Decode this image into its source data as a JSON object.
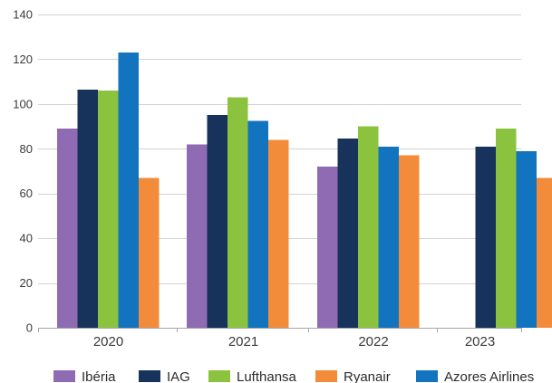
{
  "chart_data": {
    "type": "bar",
    "title": "",
    "xlabel": "",
    "ylabel": "",
    "ylim": [
      0,
      140
    ],
    "yticks": [
      0,
      20,
      40,
      60,
      80,
      100,
      120,
      140
    ],
    "grid": true,
    "legend": "bottom",
    "categories": [
      "2020",
      "2021",
      "2022",
      "2023"
    ],
    "series": [
      {
        "name": "Ibéria",
        "color": "#8e6bb2",
        "values": [
          89,
          82,
          72,
          null
        ]
      },
      {
        "name": "IAG",
        "color": "#17325b",
        "values": [
          106.5,
          95,
          84.5,
          81
        ]
      },
      {
        "name": "Lufthansa",
        "color": "#8cc33e",
        "values": [
          106,
          103,
          90,
          89
        ]
      },
      {
        "name": "Ryanair",
        "color": "#f28c3b",
        "values": [
          67,
          84,
          77,
          67
        ]
      },
      {
        "name": "Azores Airlines",
        "color": "#1273bf",
        "values": [
          123,
          92.5,
          81,
          79
        ]
      }
    ],
    "series_draw_order": [
      0,
      1,
      2,
      4,
      3
    ]
  }
}
